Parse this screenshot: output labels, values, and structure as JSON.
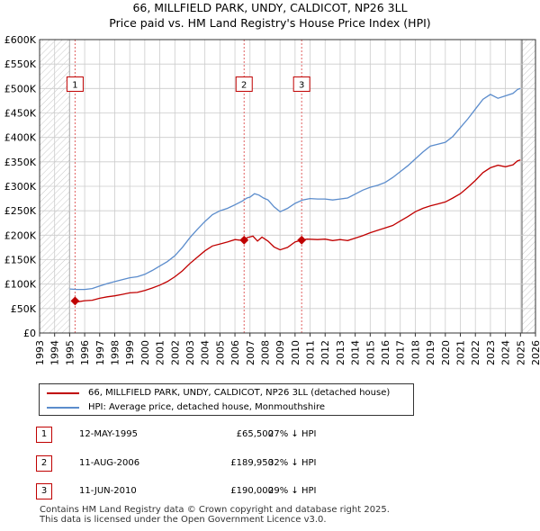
{
  "header": {
    "title": "66, MILLFIELD PARK, UNDY, CALDICOT, NP26 3LL",
    "subtitle": "Price paid vs. HM Land Registry's House Price Index (HPI)"
  },
  "colors": {
    "property": "#c00000",
    "hpi": "#5b8ccc",
    "grid": "#cccccc",
    "hatch": "#c8c8c8",
    "marker_line": "#e06060"
  },
  "chart_data": {
    "type": "line",
    "title": "66, MILLFIELD PARK, UNDY, CALDICOT, NP26 3LL",
    "subtitle": "Price paid vs. HM Land Registry's House Price Index (HPI)",
    "xlabel": "",
    "ylabel": "",
    "xlim": [
      1993,
      2026
    ],
    "ylim": [
      0,
      600000
    ],
    "grid": true,
    "legend_position": "below",
    "x_ticks": [
      "1993",
      "1994",
      "1995",
      "1996",
      "1997",
      "1998",
      "1999",
      "2000",
      "2001",
      "2002",
      "2003",
      "2004",
      "2005",
      "2006",
      "2007",
      "2008",
      "2009",
      "2010",
      "2011",
      "2012",
      "2013",
      "2014",
      "2015",
      "2016",
      "2017",
      "2018",
      "2019",
      "2020",
      "2021",
      "2022",
      "2023",
      "2024",
      "2025",
      "2026"
    ],
    "y_ticks": [
      {
        "value": 0,
        "label": "£0"
      },
      {
        "value": 50000,
        "label": "£50K"
      },
      {
        "value": 100000,
        "label": "£100K"
      },
      {
        "value": 150000,
        "label": "£150K"
      },
      {
        "value": 200000,
        "label": "£200K"
      },
      {
        "value": 250000,
        "label": "£250K"
      },
      {
        "value": 300000,
        "label": "£300K"
      },
      {
        "value": 350000,
        "label": "£350K"
      },
      {
        "value": 400000,
        "label": "£400K"
      },
      {
        "value": 450000,
        "label": "£450K"
      },
      {
        "value": 500000,
        "label": "£500K"
      },
      {
        "value": 550000,
        "label": "£550K"
      },
      {
        "value": 600000,
        "label": "£600K"
      }
    ],
    "hatched_ranges": [
      [
        1993,
        1995.0
      ],
      [
        2025.1,
        2026
      ]
    ],
    "series": [
      {
        "name": "66, MILLFIELD PARK, UNDY, CALDICOT, NP26 3LL (detached house)",
        "color": "#c00000",
        "points": [
          [
            1995.36,
            65500
          ],
          [
            1995.6,
            64000
          ],
          [
            1996.0,
            66000
          ],
          [
            1996.5,
            67000
          ],
          [
            1997.0,
            71000
          ],
          [
            1997.5,
            74000
          ],
          [
            1998.0,
            76000
          ],
          [
            1998.5,
            79000
          ],
          [
            1999.0,
            82000
          ],
          [
            1999.5,
            83000
          ],
          [
            2000.0,
            87000
          ],
          [
            2000.5,
            92000
          ],
          [
            2001.0,
            98000
          ],
          [
            2001.5,
            105000
          ],
          [
            2002.0,
            115000
          ],
          [
            2002.5,
            127000
          ],
          [
            2003.0,
            142000
          ],
          [
            2003.5,
            155000
          ],
          [
            2004.0,
            168000
          ],
          [
            2004.5,
            178000
          ],
          [
            2005.0,
            182000
          ],
          [
            2005.5,
            186000
          ],
          [
            2006.0,
            191000
          ],
          [
            2006.3,
            190000
          ],
          [
            2006.61,
            189950
          ],
          [
            2006.8,
            195000
          ],
          [
            2007.2,
            198000
          ],
          [
            2007.5,
            188000
          ],
          [
            2007.8,
            196000
          ],
          [
            2008.2,
            188000
          ],
          [
            2008.6,
            176000
          ],
          [
            2009.0,
            170000
          ],
          [
            2009.5,
            175000
          ],
          [
            2010.0,
            186000
          ],
          [
            2010.44,
            190000
          ],
          [
            2010.8,
            192000
          ],
          [
            2011.5,
            191000
          ],
          [
            2012.0,
            192000
          ],
          [
            2012.5,
            189000
          ],
          [
            2013.0,
            191000
          ],
          [
            2013.5,
            189000
          ],
          [
            2014.0,
            194000
          ],
          [
            2014.5,
            199000
          ],
          [
            2015.0,
            205000
          ],
          [
            2015.5,
            210000
          ],
          [
            2016.0,
            215000
          ],
          [
            2016.5,
            220000
          ],
          [
            2017.0,
            229000
          ],
          [
            2017.5,
            238000
          ],
          [
            2018.0,
            248000
          ],
          [
            2018.5,
            255000
          ],
          [
            2019.0,
            260000
          ],
          [
            2019.5,
            264000
          ],
          [
            2020.0,
            268000
          ],
          [
            2020.5,
            276000
          ],
          [
            2021.0,
            285000
          ],
          [
            2021.5,
            298000
          ],
          [
            2022.0,
            312000
          ],
          [
            2022.5,
            328000
          ],
          [
            2023.0,
            338000
          ],
          [
            2023.5,
            343000
          ],
          [
            2024.0,
            340000
          ],
          [
            2024.5,
            344000
          ],
          [
            2024.8,
            352000
          ],
          [
            2025.0,
            354000
          ]
        ]
      },
      {
        "name": "HPI: Average price, detached house, Monmouthshire",
        "color": "#5b8ccc",
        "points": [
          [
            1995.0,
            90000
          ],
          [
            1995.5,
            89000
          ],
          [
            1996.0,
            89000
          ],
          [
            1996.5,
            91000
          ],
          [
            1997.0,
            96000
          ],
          [
            1997.5,
            101000
          ],
          [
            1998.0,
            105000
          ],
          [
            1998.5,
            109000
          ],
          [
            1999.0,
            113000
          ],
          [
            1999.5,
            115000
          ],
          [
            2000.0,
            120000
          ],
          [
            2000.5,
            128000
          ],
          [
            2001.0,
            137000
          ],
          [
            2001.5,
            146000
          ],
          [
            2002.0,
            158000
          ],
          [
            2002.5,
            175000
          ],
          [
            2003.0,
            195000
          ],
          [
            2003.5,
            212000
          ],
          [
            2004.0,
            228000
          ],
          [
            2004.5,
            242000
          ],
          [
            2005.0,
            250000
          ],
          [
            2005.5,
            255000
          ],
          [
            2006.0,
            262000
          ],
          [
            2006.5,
            270000
          ],
          [
            2006.8,
            276000
          ],
          [
            2007.0,
            278000
          ],
          [
            2007.3,
            285000
          ],
          [
            2007.6,
            282000
          ],
          [
            2007.9,
            276000
          ],
          [
            2008.2,
            272000
          ],
          [
            2008.6,
            258000
          ],
          [
            2009.0,
            248000
          ],
          [
            2009.5,
            255000
          ],
          [
            2010.0,
            265000
          ],
          [
            2010.5,
            272000
          ],
          [
            2011.0,
            275000
          ],
          [
            2011.5,
            274000
          ],
          [
            2012.0,
            274000
          ],
          [
            2012.5,
            272000
          ],
          [
            2013.0,
            274000
          ],
          [
            2013.5,
            276000
          ],
          [
            2014.0,
            284000
          ],
          [
            2014.5,
            292000
          ],
          [
            2015.0,
            298000
          ],
          [
            2015.5,
            302000
          ],
          [
            2016.0,
            308000
          ],
          [
            2016.5,
            318000
          ],
          [
            2017.0,
            330000
          ],
          [
            2017.5,
            342000
          ],
          [
            2018.0,
            356000
          ],
          [
            2018.5,
            370000
          ],
          [
            2019.0,
            382000
          ],
          [
            2019.5,
            386000
          ],
          [
            2020.0,
            390000
          ],
          [
            2020.5,
            402000
          ],
          [
            2021.0,
            420000
          ],
          [
            2021.5,
            438000
          ],
          [
            2022.0,
            458000
          ],
          [
            2022.5,
            478000
          ],
          [
            2023.0,
            488000
          ],
          [
            2023.5,
            480000
          ],
          [
            2024.0,
            485000
          ],
          [
            2024.5,
            490000
          ],
          [
            2024.8,
            498000
          ],
          [
            2025.0,
            500000
          ]
        ]
      }
    ],
    "sales": [
      {
        "label": "1",
        "x": 1995.36,
        "y": 65500
      },
      {
        "label": "2",
        "x": 2006.61,
        "y": 189950
      },
      {
        "label": "3",
        "x": 2010.44,
        "y": 190000
      }
    ]
  },
  "legend": {
    "items": [
      {
        "label": "66, MILLFIELD PARK, UNDY, CALDICOT, NP26 3LL (detached house)",
        "color": "#c00000"
      },
      {
        "label": "HPI: Average price, detached house, Monmouthshire",
        "color": "#5b8ccc"
      }
    ]
  },
  "transactions": [
    {
      "num": "1",
      "date": "12-MAY-1995",
      "price": "£65,500",
      "hpi": "27% ↓ HPI"
    },
    {
      "num": "2",
      "date": "11-AUG-2006",
      "price": "£189,950",
      "hpi": "32% ↓ HPI"
    },
    {
      "num": "3",
      "date": "11-JUN-2010",
      "price": "£190,000",
      "hpi": "29% ↓ HPI"
    }
  ],
  "footer": {
    "line1": "Contains HM Land Registry data © Crown copyright and database right 2025.",
    "line2": "This data is licensed under the Open Government Licence v3.0."
  }
}
